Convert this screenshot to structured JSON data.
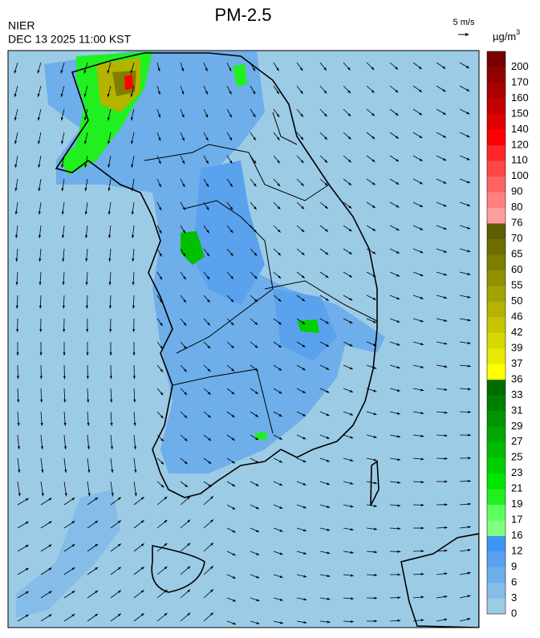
{
  "header": {
    "title": "PM-2.5",
    "agency": "NIER",
    "timestamp": "DEC 13 2025 11:00 KST",
    "wind_scale": "5 m/s"
  },
  "colorbar": {
    "unit": {
      "base": "µg/m",
      "superscript": "3"
    },
    "ticks": [
      0,
      3,
      6,
      9,
      12,
      16,
      17,
      19,
      21,
      23,
      25,
      27,
      29,
      31,
      33,
      36,
      37,
      39,
      42,
      46,
      50,
      55,
      60,
      65,
      70,
      76,
      80,
      90,
      100,
      110,
      120,
      140,
      150,
      160,
      170,
      200
    ],
    "colors": [
      "#9ccbe6",
      "#85bde8",
      "#6eaeea",
      "#5aa2ee",
      "#3f96f2",
      "#80ff80",
      "#5cff5c",
      "#20f020",
      "#00e400",
      "#00d000",
      "#00bc00",
      "#00a800",
      "#009400",
      "#008000",
      "#006c00",
      "#ffff00",
      "#e8e800",
      "#d8d800",
      "#c6c600",
      "#b4b400",
      "#a2a200",
      "#909000",
      "#7e7e00",
      "#6e6e00",
      "#5e5e00",
      "#ff9c9c",
      "#ff8080",
      "#ff6464",
      "#ff4646",
      "#ff2828",
      "#ff0000",
      "#e00000",
      "#c40000",
      "#aa0000",
      "#920000",
      "#7a0000"
    ]
  }
}
